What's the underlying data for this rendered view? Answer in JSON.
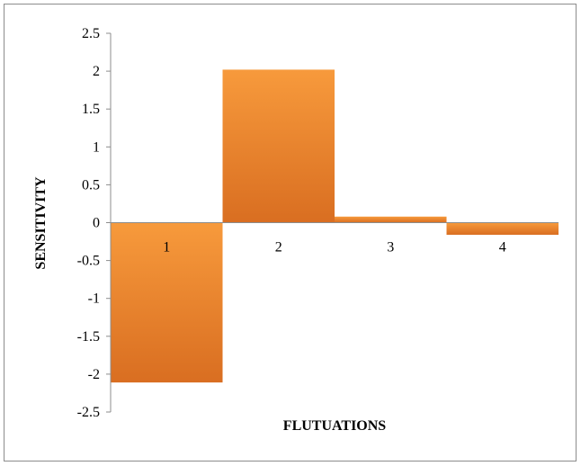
{
  "chart_data": {
    "type": "bar",
    "title": "",
    "xlabel": "FLUTUATIONS",
    "ylabel": "SENSITIVITY",
    "categories": [
      "1",
      "2",
      "3",
      "4"
    ],
    "values": [
      -2.11,
      2.02,
      0.08,
      -0.16
    ],
    "ylim": [
      -2.5,
      2.5
    ],
    "ytick_step": 0.5,
    "yticks": [
      "2.5",
      "2",
      "1.5",
      "1",
      "0.5",
      "0",
      "-0.5",
      "-1",
      "-1.5",
      "-2",
      "-2.5"
    ],
    "grid": false,
    "legend": "none",
    "colors": {
      "bar_top": "#f79a3c",
      "bar_bottom": "#d96e21",
      "axis": "#8c8c8c",
      "frame": "#8c8c8c"
    }
  }
}
